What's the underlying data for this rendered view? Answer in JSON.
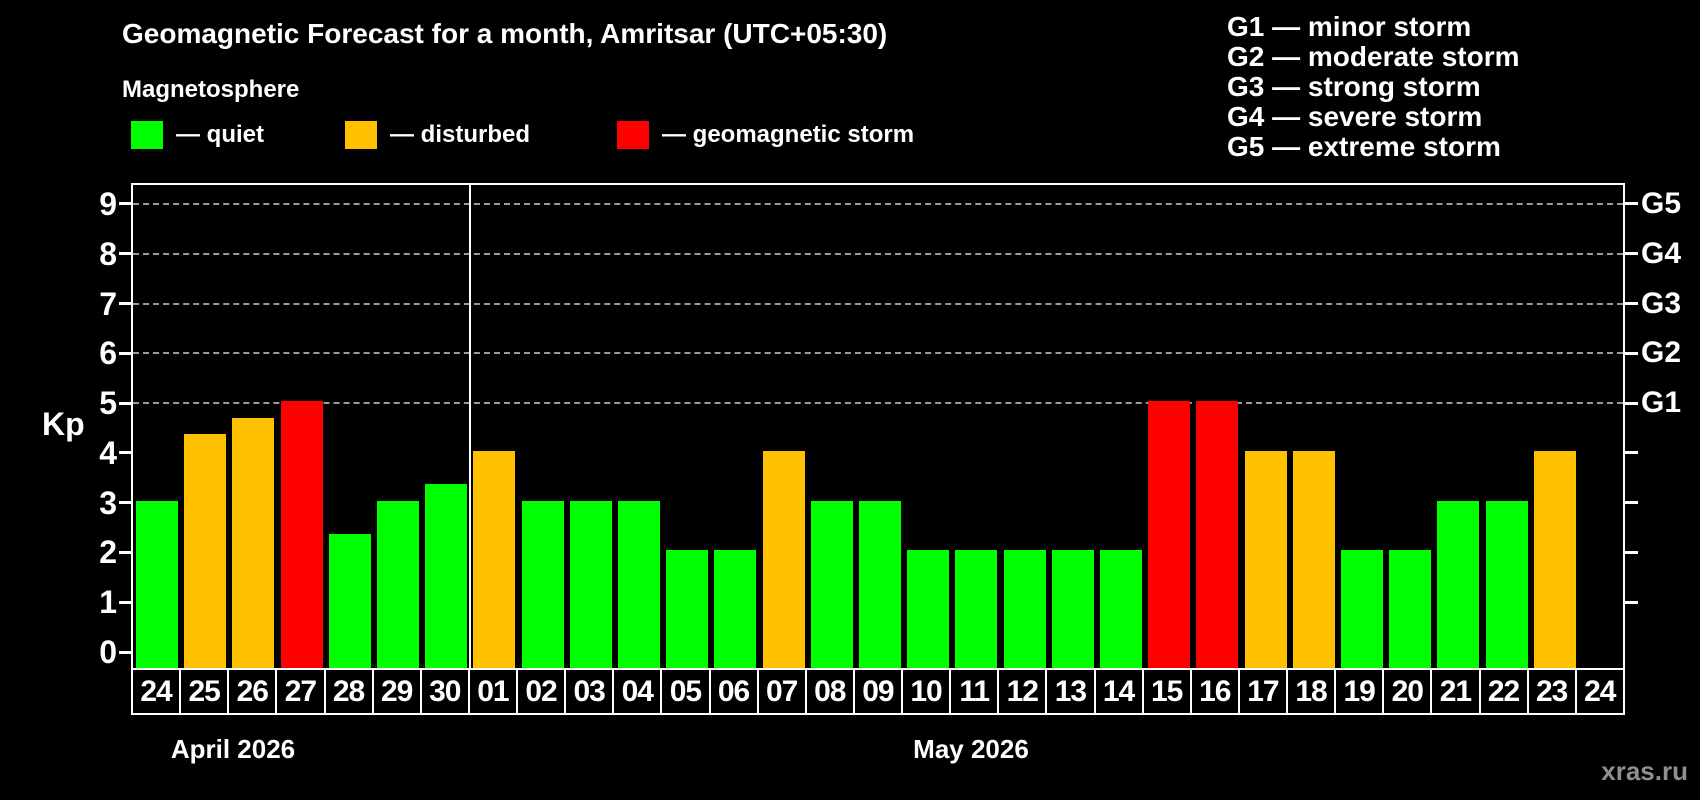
{
  "header": {
    "title": "Geomagnetic Forecast for a month, Amritsar (UTC+05:30)",
    "subtitle": "Magnetosphere"
  },
  "bar_legend": [
    {
      "label": "— quiet",
      "level": "quiet"
    },
    {
      "label": "— disturbed",
      "level": "disturbed"
    },
    {
      "label": "— geomagnetic storm",
      "level": "storm"
    }
  ],
  "g_scale_legend": [
    "G1 — minor storm",
    "G2 — moderate storm",
    "G3 — strong storm",
    "G4 — severe storm",
    "G5 — extreme storm"
  ],
  "colors": {
    "quiet": "#00ff00",
    "disturbed": "#ffc000",
    "storm": "#ff0000",
    "axis": "#ffffff",
    "grid": "#9a9a9a",
    "watermark": "#8f8f8f",
    "background": "#000000"
  },
  "watermark": "xras.ru",
  "chart_data": {
    "type": "bar",
    "title": "Geomagnetic Forecast for a month, Amritsar (UTC+05:30)",
    "ylabel": "Kp",
    "ylim": [
      0,
      9
    ],
    "yticks": [
      0,
      1,
      2,
      3,
      4,
      5,
      6,
      7,
      8,
      9
    ],
    "gridlines_kp": [
      5,
      6,
      7,
      8,
      9
    ],
    "grid_style": "dashed",
    "legend_position": "top",
    "right_axis": [
      {
        "label": "G1",
        "kp": 5
      },
      {
        "label": "G2",
        "kp": 6
      },
      {
        "label": "G3",
        "kp": 7
      },
      {
        "label": "G4",
        "kp": 8
      },
      {
        "label": "G5",
        "kp": 9
      }
    ],
    "x_groups": [
      {
        "label": "April 2026",
        "days_count": 7
      },
      {
        "label": "May 2026",
        "days_count": 24
      }
    ],
    "days": [
      {
        "month": "April 2026",
        "day": "24",
        "kp": 3,
        "level": "quiet"
      },
      {
        "month": "April 2026",
        "day": "25",
        "kp": 4.33,
        "level": "disturbed"
      },
      {
        "month": "April 2026",
        "day": "26",
        "kp": 4.67,
        "level": "disturbed"
      },
      {
        "month": "April 2026",
        "day": "27",
        "kp": 5,
        "level": "storm"
      },
      {
        "month": "April 2026",
        "day": "28",
        "kp": 2.33,
        "level": "quiet"
      },
      {
        "month": "April 2026",
        "day": "29",
        "kp": 3,
        "level": "quiet"
      },
      {
        "month": "April 2026",
        "day": "30",
        "kp": 3.33,
        "level": "quiet"
      },
      {
        "month": "May 2026",
        "day": "01",
        "kp": 4,
        "level": "disturbed"
      },
      {
        "month": "May 2026",
        "day": "02",
        "kp": 3,
        "level": "quiet"
      },
      {
        "month": "May 2026",
        "day": "03",
        "kp": 3,
        "level": "quiet"
      },
      {
        "month": "May 2026",
        "day": "04",
        "kp": 3,
        "level": "quiet"
      },
      {
        "month": "May 2026",
        "day": "05",
        "kp": 2,
        "level": "quiet"
      },
      {
        "month": "May 2026",
        "day": "06",
        "kp": 2,
        "level": "quiet"
      },
      {
        "month": "May 2026",
        "day": "07",
        "kp": 4,
        "level": "disturbed"
      },
      {
        "month": "May 2026",
        "day": "08",
        "kp": 3,
        "level": "quiet"
      },
      {
        "month": "May 2026",
        "day": "09",
        "kp": 3,
        "level": "quiet"
      },
      {
        "month": "May 2026",
        "day": "10",
        "kp": 2,
        "level": "quiet"
      },
      {
        "month": "May 2026",
        "day": "11",
        "kp": 2,
        "level": "quiet"
      },
      {
        "month": "May 2026",
        "day": "12",
        "kp": 2,
        "level": "quiet"
      },
      {
        "month": "May 2026",
        "day": "13",
        "kp": 2,
        "level": "quiet"
      },
      {
        "month": "May 2026",
        "day": "14",
        "kp": 2,
        "level": "quiet"
      },
      {
        "month": "May 2026",
        "day": "15",
        "kp": 5,
        "level": "storm"
      },
      {
        "month": "May 2026",
        "day": "16",
        "kp": 5,
        "level": "storm"
      },
      {
        "month": "May 2026",
        "day": "17",
        "kp": 4,
        "level": "disturbed"
      },
      {
        "month": "May 2026",
        "day": "18",
        "kp": 4,
        "level": "disturbed"
      },
      {
        "month": "May 2026",
        "day": "19",
        "kp": 2,
        "level": "quiet"
      },
      {
        "month": "May 2026",
        "day": "20",
        "kp": 2,
        "level": "quiet"
      },
      {
        "month": "May 2026",
        "day": "21",
        "kp": 3,
        "level": "quiet"
      },
      {
        "month": "May 2026",
        "day": "22",
        "kp": 3,
        "level": "quiet"
      },
      {
        "month": "May 2026",
        "day": "23",
        "kp": 4,
        "level": "disturbed"
      },
      {
        "month": "May 2026",
        "day": "24",
        "kp": null,
        "level": null
      }
    ]
  }
}
